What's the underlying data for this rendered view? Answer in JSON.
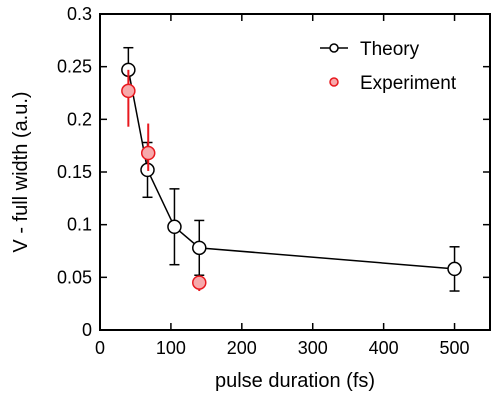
{
  "chart_data": {
    "type": "scatter",
    "xlabel": "pulse duration (fs)",
    "ylabel": "V - full width (a.u.)",
    "xlim": [
      0,
      550
    ],
    "ylim": [
      0,
      0.3
    ],
    "xticks": [
      0,
      100,
      200,
      300,
      400,
      500
    ],
    "yticks": [
      0,
      0.05,
      0.1,
      0.15,
      0.2,
      0.25,
      0.3
    ],
    "xtick_labels": [
      "0",
      "100",
      "200",
      "300",
      "400",
      "500"
    ],
    "ytick_labels": [
      "0",
      "0.05",
      "0.1",
      "0.15",
      "0.2",
      "0.25",
      "0.3"
    ],
    "grid": false,
    "legend_position": "top-right",
    "series": [
      {
        "name": "Theory",
        "style": "line-open-markers",
        "color": "#000000",
        "points": [
          {
            "x": 40,
            "y": 0.247,
            "err_low": 0.02,
            "err_high": 0.021
          },
          {
            "x": 67,
            "y": 0.152,
            "err_low": 0.026,
            "err_high": 0.026
          },
          {
            "x": 105,
            "y": 0.098,
            "err_low": 0.036,
            "err_high": 0.036
          },
          {
            "x": 140,
            "y": 0.078,
            "err_low": 0.026,
            "err_high": 0.026
          },
          {
            "x": 500,
            "y": 0.058,
            "err_low": 0.021,
            "err_high": 0.021
          }
        ]
      },
      {
        "name": "Experiment",
        "style": "filled-markers",
        "color": "#e8181e",
        "fill": "#f7a9ab",
        "points": [
          {
            "x": 40,
            "y": 0.227,
            "err_low": 0.034,
            "err_high": 0.02
          },
          {
            "x": 68,
            "y": 0.168,
            "err_low": 0.017,
            "err_high": 0.028
          },
          {
            "x": 140,
            "y": 0.045,
            "err_low": 0.008,
            "err_high": 0.005
          }
        ]
      }
    ]
  }
}
